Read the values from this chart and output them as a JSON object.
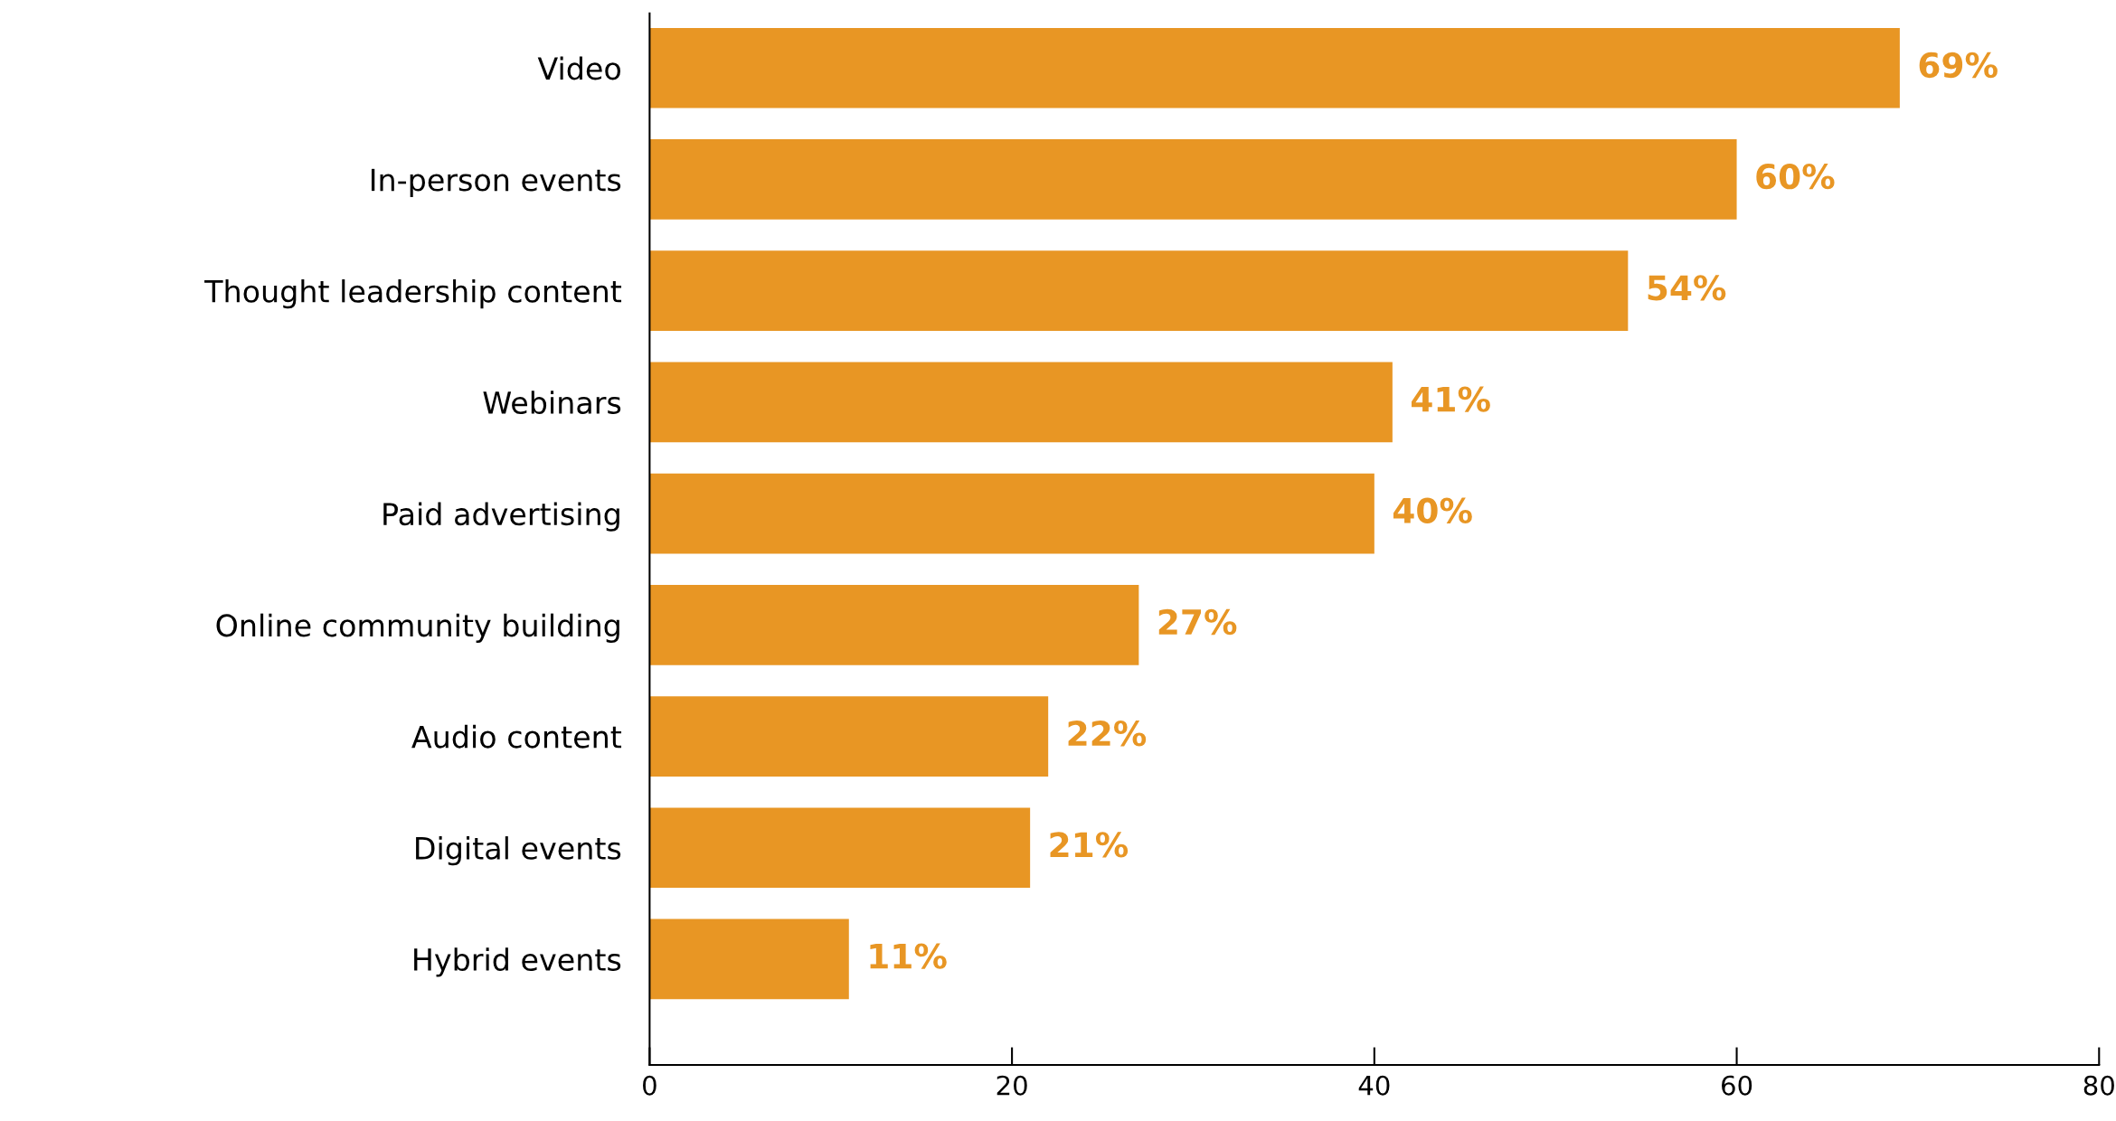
{
  "chart_data": {
    "type": "bar",
    "orientation": "horizontal",
    "categories": [
      "Video",
      "In-person events",
      "Thought leadership content",
      "Webinars",
      "Paid advertising",
      "Online community building",
      "Audio content",
      "Digital events",
      "Hybrid events"
    ],
    "values": [
      69,
      60,
      54,
      41,
      40,
      27,
      22,
      21,
      11
    ],
    "value_labels": [
      "69%",
      "60%",
      "54%",
      "41%",
      "40%",
      "27%",
      "22%",
      "21%",
      "11%"
    ],
    "color": "#e89624",
    "xlim": [
      0,
      80
    ],
    "xticks": [
      0,
      20,
      40,
      60,
      80
    ],
    "grid": false,
    "legend": false
  }
}
